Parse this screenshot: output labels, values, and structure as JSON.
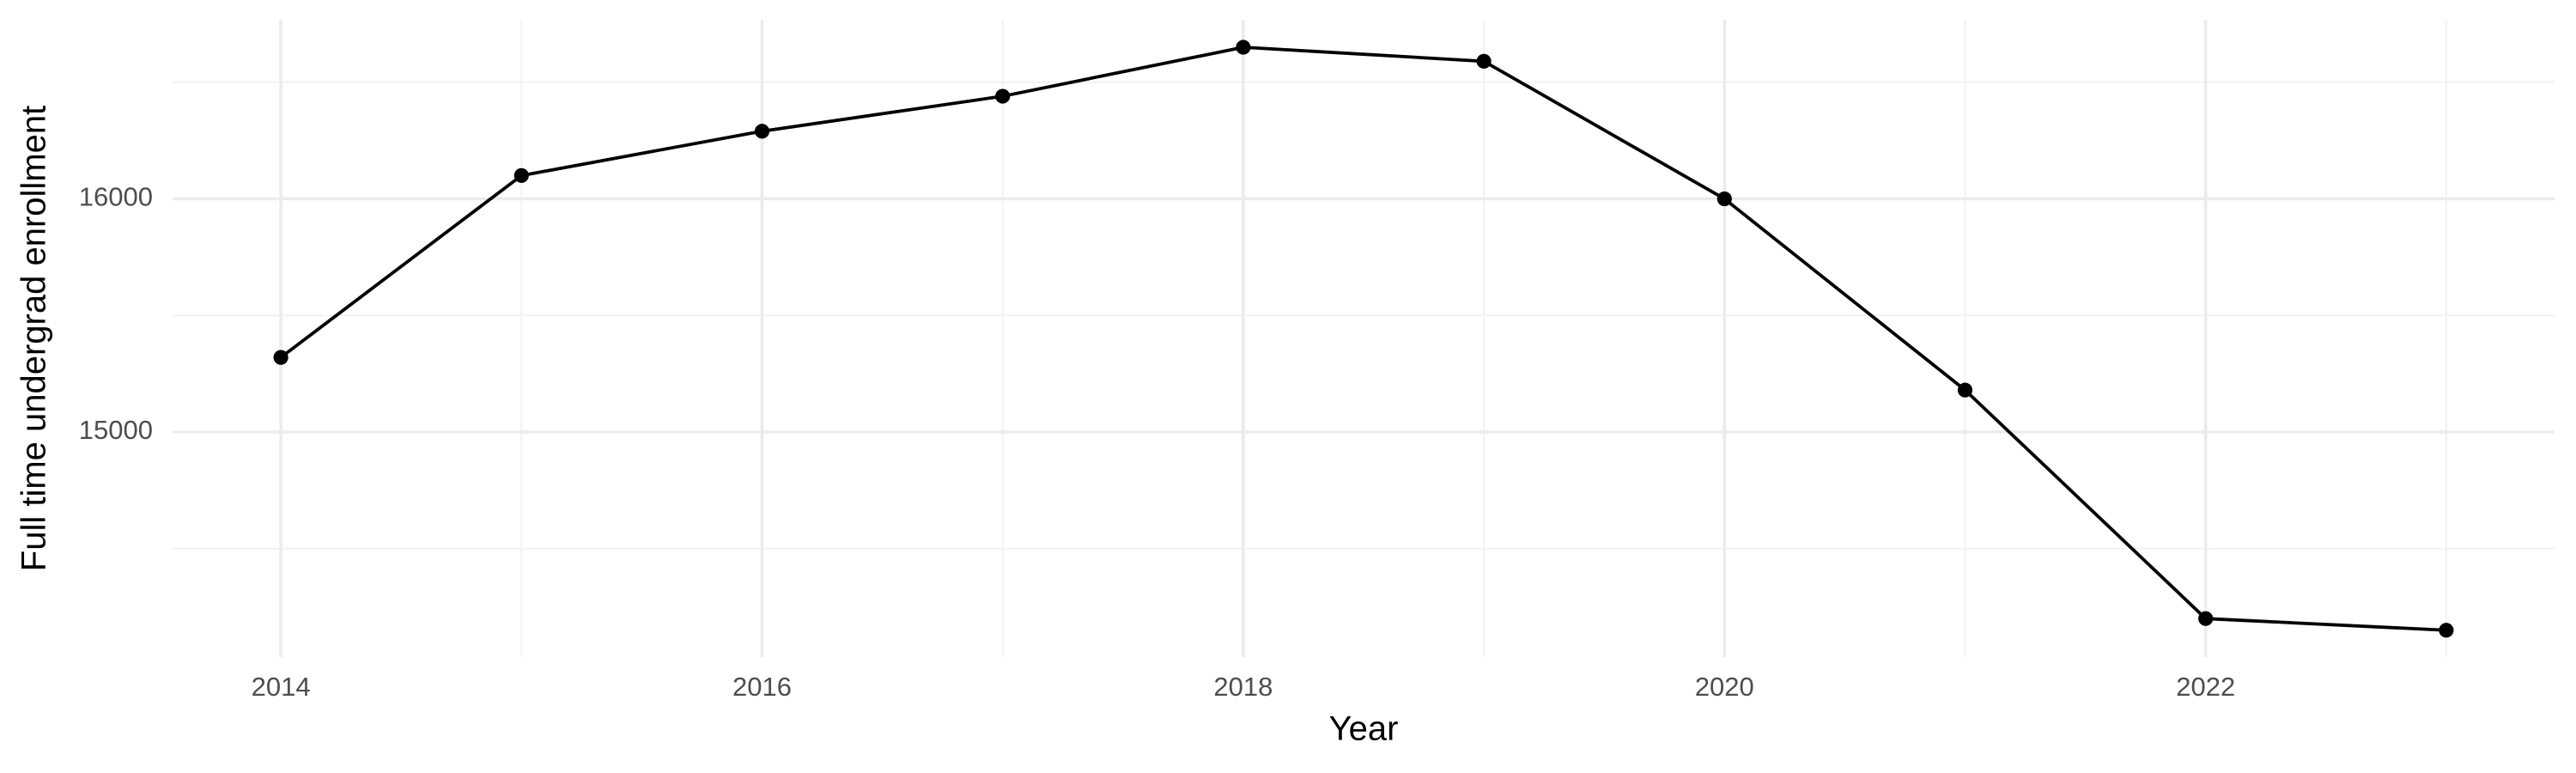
{
  "chart_data": {
    "type": "line",
    "x_label": "Year",
    "y_label": "Full time undergrad enrollment",
    "x": [
      2014,
      2015,
      2016,
      2017,
      2018,
      2019,
      2020,
      2021,
      2022,
      2023
    ],
    "series": [
      {
        "name": "Full time undergrad enrollment",
        "color": "#000000",
        "values": [
          15320,
          16100,
          16290,
          16440,
          16650,
          16590,
          16000,
          15180,
          14200,
          14150
        ]
      }
    ],
    "xlim": [
      2013.55,
      2023.45
    ],
    "xticks": [
      2014,
      2016,
      2018,
      2020,
      2022
    ],
    "xminor": [
      2015,
      2017,
      2019,
      2021,
      2023
    ],
    "ylim": [
      14035,
      16768
    ],
    "yticks": [
      15000,
      16000
    ],
    "yminor": [
      14500,
      15500,
      16500
    ],
    "grid": true,
    "markers": true
  }
}
